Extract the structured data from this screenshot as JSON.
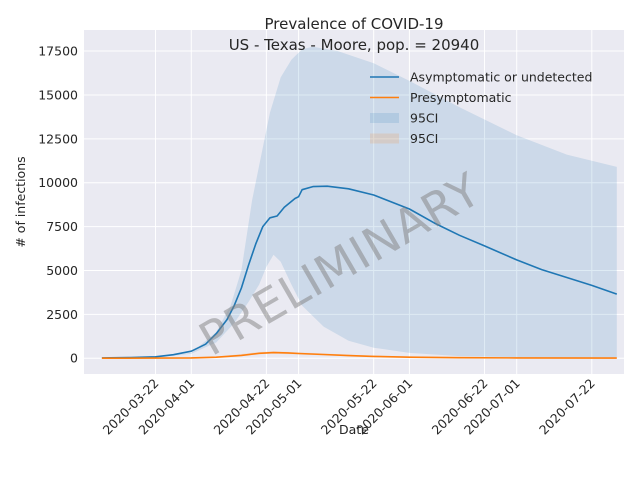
{
  "chart_data": {
    "type": "line",
    "title": "Prevalence of COVID-19",
    "subtitle": "US - Texas - Moore, pop. = 20940",
    "xlabel": "Date",
    "ylabel": "# of infections",
    "ylim": [
      -900,
      18700
    ],
    "xlim": [
      "2020-03-02",
      "2020-07-31"
    ],
    "yticks": [
      0,
      2500,
      5000,
      7500,
      10000,
      12500,
      15000,
      17500
    ],
    "ytick_labels": [
      "0",
      "2500",
      "5000",
      "7500",
      "10000",
      "12500",
      "15000",
      "17500"
    ],
    "xticks": [
      "2020-03-22",
      "2020-04-01",
      "2020-04-22",
      "2020-05-01",
      "2020-05-22",
      "2020-06-01",
      "2020-06-22",
      "2020-07-01",
      "2020-07-22"
    ],
    "grid": true,
    "legend_position": "top-right",
    "watermark": "PRELIMINARY",
    "series": [
      {
        "name": "Asymptomatic or undetected",
        "color": "#1f77b4",
        "points": [
          [
            "2020-03-07",
            20
          ],
          [
            "2020-03-15",
            40
          ],
          [
            "2020-03-22",
            80
          ],
          [
            "2020-03-27",
            200
          ],
          [
            "2020-04-01",
            400
          ],
          [
            "2020-04-05",
            800
          ],
          [
            "2020-04-08",
            1400
          ],
          [
            "2020-04-11",
            2200
          ],
          [
            "2020-04-13",
            3000
          ],
          [
            "2020-04-15",
            4000
          ],
          [
            "2020-04-17",
            5300
          ],
          [
            "2020-04-19",
            6500
          ],
          [
            "2020-04-21",
            7500
          ],
          [
            "2020-04-23",
            8000
          ],
          [
            "2020-04-25",
            8100
          ],
          [
            "2020-04-27",
            8600
          ],
          [
            "2020-04-30",
            9100
          ],
          [
            "2020-05-01",
            9200
          ],
          [
            "2020-05-02",
            9600
          ],
          [
            "2020-05-05",
            9780
          ],
          [
            "2020-05-09",
            9800
          ],
          [
            "2020-05-15",
            9650
          ],
          [
            "2020-05-22",
            9300
          ],
          [
            "2020-06-01",
            8500
          ],
          [
            "2020-06-08",
            7700
          ],
          [
            "2020-06-15",
            7000
          ],
          [
            "2020-06-22",
            6400
          ],
          [
            "2020-07-01",
            5600
          ],
          [
            "2020-07-08",
            5050
          ],
          [
            "2020-07-15",
            4600
          ],
          [
            "2020-07-22",
            4150
          ],
          [
            "2020-07-29",
            3650
          ]
        ]
      },
      {
        "name": "Presymptomatic",
        "color": "#ff7f0e",
        "points": [
          [
            "2020-03-07",
            0
          ],
          [
            "2020-03-22",
            5
          ],
          [
            "2020-04-01",
            15
          ],
          [
            "2020-04-08",
            60
          ],
          [
            "2020-04-15",
            160
          ],
          [
            "2020-04-20",
            280
          ],
          [
            "2020-04-24",
            320
          ],
          [
            "2020-04-28",
            300
          ],
          [
            "2020-05-01",
            270
          ],
          [
            "2020-05-08",
            210
          ],
          [
            "2020-05-15",
            150
          ],
          [
            "2020-05-22",
            100
          ],
          [
            "2020-06-01",
            55
          ],
          [
            "2020-06-15",
            30
          ],
          [
            "2020-07-01",
            15
          ],
          [
            "2020-07-29",
            5
          ]
        ]
      }
    ],
    "bands": [
      {
        "name": "95CI",
        "color": "#1f77b4",
        "opacity": 0.15,
        "upper": [
          [
            "2020-03-07",
            0
          ],
          [
            "2020-03-22",
            50
          ],
          [
            "2020-04-01",
            300
          ],
          [
            "2020-04-08",
            1500
          ],
          [
            "2020-04-12",
            3000
          ],
          [
            "2020-04-15",
            5000
          ],
          [
            "2020-04-18",
            9000
          ],
          [
            "2020-04-21",
            12000
          ],
          [
            "2020-04-23",
            14000
          ],
          [
            "2020-04-26",
            16000
          ],
          [
            "2020-04-29",
            17000
          ],
          [
            "2020-05-02",
            17600
          ],
          [
            "2020-05-05",
            17750
          ],
          [
            "2020-05-12",
            17500
          ],
          [
            "2020-05-22",
            16800
          ],
          [
            "2020-06-01",
            15800
          ],
          [
            "2020-06-15",
            14300
          ],
          [
            "2020-07-01",
            12700
          ],
          [
            "2020-07-15",
            11600
          ],
          [
            "2020-07-29",
            10900
          ]
        ],
        "lower": [
          [
            "2020-03-07",
            0
          ],
          [
            "2020-03-22",
            30
          ],
          [
            "2020-04-01",
            250
          ],
          [
            "2020-04-08",
            900
          ],
          [
            "2020-04-13",
            2000
          ],
          [
            "2020-04-17",
            3200
          ],
          [
            "2020-04-20",
            4200
          ],
          [
            "2020-04-22",
            5200
          ],
          [
            "2020-04-24",
            5900
          ],
          [
            "2020-04-26",
            5500
          ],
          [
            "2020-04-29",
            4200
          ],
          [
            "2020-05-02",
            3000
          ],
          [
            "2020-05-08",
            1800
          ],
          [
            "2020-05-15",
            1000
          ],
          [
            "2020-05-22",
            600
          ],
          [
            "2020-06-01",
            300
          ],
          [
            "2020-06-15",
            120
          ],
          [
            "2020-07-01",
            60
          ],
          [
            "2020-07-29",
            20
          ]
        ]
      },
      {
        "name": "95CI",
        "color": "#ff7f0e",
        "opacity": 0.15,
        "upper": [
          [
            "2020-03-07",
            0
          ],
          [
            "2020-04-08",
            80
          ],
          [
            "2020-04-20",
            350
          ],
          [
            "2020-04-24",
            400
          ],
          [
            "2020-05-01",
            330
          ],
          [
            "2020-05-22",
            140
          ],
          [
            "2020-06-15",
            45
          ],
          [
            "2020-07-29",
            10
          ]
        ],
        "lower": [
          [
            "2020-03-07",
            0
          ],
          [
            "2020-04-08",
            40
          ],
          [
            "2020-04-20",
            220
          ],
          [
            "2020-04-24",
            250
          ],
          [
            "2020-05-01",
            210
          ],
          [
            "2020-05-22",
            70
          ],
          [
            "2020-06-15",
            20
          ],
          [
            "2020-07-29",
            2
          ]
        ]
      }
    ]
  }
}
